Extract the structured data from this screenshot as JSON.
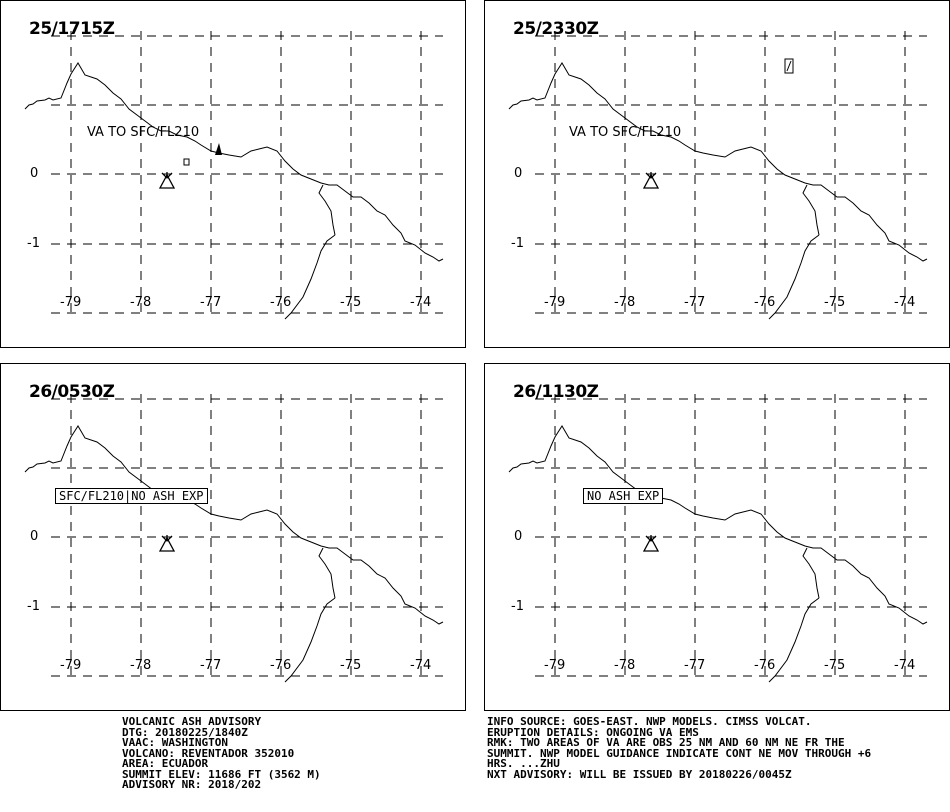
{
  "panels": [
    {
      "time": "25/1715Z",
      "label": "VA TO SFC/FL210",
      "label_style": "plain"
    },
    {
      "time": "25/2330Z",
      "label": "VA TO SFC/FL210",
      "label_style": "plain"
    },
    {
      "time": "26/0530Z",
      "label": "SFC/FL210|NO ASH EXP",
      "label_style": "boxed"
    },
    {
      "time": "26/1130Z",
      "label": "NO ASH EXP",
      "label_style": "boxed"
    }
  ],
  "axes": {
    "lat_labels": [
      "0",
      "-1"
    ],
    "lon_labels": [
      "-79",
      "-78",
      "-77",
      "-76",
      "-75",
      "-74"
    ]
  },
  "advisory_left": {
    "title": "VOLCANIC ASH ADVISORY",
    "dtg": "DTG: 20180225/1840Z",
    "vaac": "VAAC: WASHINGTON",
    "volcano": "VOLCANO: REVENTADOR 352010",
    "area": "AREA: ECUADOR",
    "summit": "SUMMIT ELEV: 11686 FT (3562 M)",
    "advisory_nr": "ADVISORY NR: 2018/202"
  },
  "advisory_right": {
    "info_source": "INFO SOURCE: GOES-EAST. NWP MODELS. CIMSS VOLCAT.",
    "eruption": "ERUPTION DETAILS: ONGOING VA EMS",
    "rmk1": "RMK: TWO AREAS OF VA ARE OBS 25 NM AND 60 NM NE FR THE",
    "rmk2": "SUMMIT. NWP MODEL GUIDANCE INDICATE CONT NE MOV THROUGH +6",
    "rmk3": "HRS. ...ZHU",
    "next": "NXT ADVISORY: WILL BE ISSUED BY 20180226/0045Z"
  }
}
